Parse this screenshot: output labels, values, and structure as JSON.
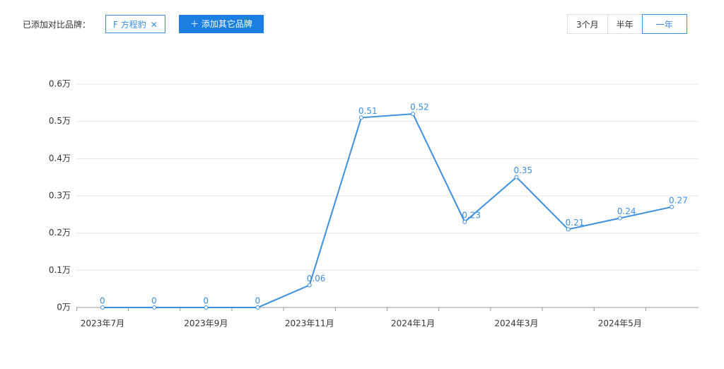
{
  "controls": {
    "label": "已添加对比品牌：",
    "brand_tag": "F 方程豹",
    "add_button": "添加其它品牌",
    "ranges": [
      "3个月",
      "半年",
      "一年"
    ]
  },
  "chart_data": {
    "type": "line",
    "categories": [
      "2023年7月",
      null,
      "2023年9月",
      null,
      "2023年11月",
      null,
      "2024年1月",
      null,
      "2024年3月",
      null,
      "2024年5月",
      null
    ],
    "series": [
      {
        "name": "F 方程豹",
        "color": "#3d8fe0",
        "values": [
          0,
          0,
          0,
          0,
          0.06,
          0.51,
          0.52,
          0.23,
          0.35,
          0.21,
          0.24,
          0.27
        ]
      }
    ],
    "ylim": [
      0,
      0.6
    ],
    "yticks": [
      {
        "value": 0,
        "label": "0万"
      },
      {
        "value": 0.1,
        "label": "0.1万"
      },
      {
        "value": 0.2,
        "label": "0.2万"
      },
      {
        "value": 0.3,
        "label": "0.3万"
      },
      {
        "value": 0.4,
        "label": "0.4万"
      },
      {
        "value": 0.5,
        "label": "0.5万"
      },
      {
        "value": 0.6,
        "label": "0.6万"
      }
    ],
    "grid": true
  }
}
